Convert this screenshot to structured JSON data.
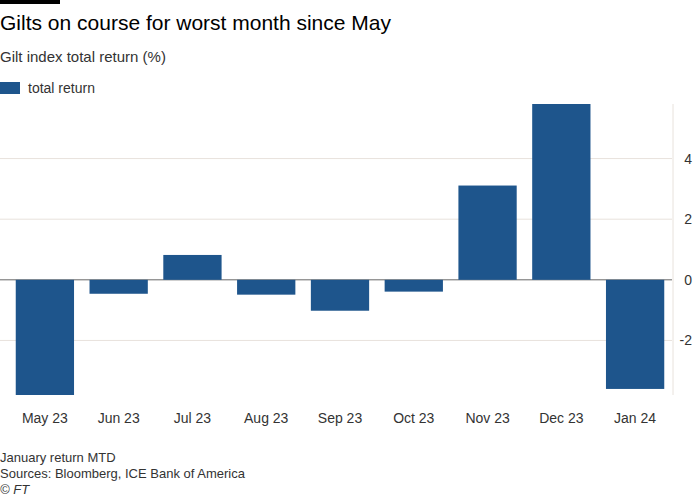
{
  "chart_data": {
    "type": "bar",
    "title": "Gilts on course for worst month since May",
    "subtitle": "Gilt index total return (%)",
    "categories": [
      "May 23",
      "Jun 23",
      "Jul 23",
      "Aug 23",
      "Sep 23",
      "Oct 23",
      "Nov 23",
      "Dec 23",
      "Jan 24"
    ],
    "series": [
      {
        "name": "total return",
        "color": "#1e558c",
        "values": [
          -3.8,
          -0.46,
          0.82,
          -0.49,
          -1.02,
          -0.39,
          3.11,
          5.8,
          -3.6
        ]
      }
    ],
    "ylim": [
      -3.8,
      5.8
    ],
    "yticks": [
      -2,
      0,
      2,
      4
    ],
    "grid": true,
    "legend": "top-left",
    "notes": [
      "January return MTD"
    ],
    "source": "Sources: Bloomberg, ICE Bank of America",
    "credit": "© FT"
  }
}
